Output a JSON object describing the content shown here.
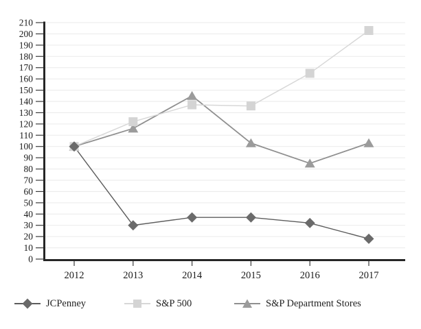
{
  "chart_data": {
    "type": "line",
    "title": "",
    "xlabel": "",
    "ylabel": "",
    "categories": [
      "2012",
      "2013",
      "2014",
      "2015",
      "2016",
      "2017"
    ],
    "series": [
      {
        "name": "JCPenney",
        "marker": "diamond",
        "color": "#6a6a6a",
        "line_color": "#5c5c5c",
        "line_width": 1.4,
        "values": [
          100,
          30,
          37,
          37,
          32,
          18
        ]
      },
      {
        "name": "S&P 500",
        "marker": "square",
        "color": "#d4d4d4",
        "line_color": "#d7d7d7",
        "line_width": 1.5,
        "values": [
          100,
          122,
          137,
          136,
          165,
          203
        ]
      },
      {
        "name": "S&P Department Stores",
        "marker": "triangle",
        "color": "#9b9b9b",
        "line_color": "#8f8f8f",
        "line_width": 1.8,
        "values": [
          100,
          116,
          145,
          103,
          85,
          103
        ]
      }
    ],
    "ylim": [
      0,
      210
    ],
    "yticks": [
      0,
      10,
      20,
      30,
      40,
      50,
      60,
      70,
      80,
      90,
      100,
      110,
      120,
      130,
      140,
      150,
      160,
      170,
      180,
      190,
      200,
      210
    ],
    "grid": true,
    "grid_color": "#eaeaea",
    "axis_color": "#262626",
    "tick_color": "#3a3a3a",
    "text_color": "#1a1a1a",
    "legend_position": "bottom"
  }
}
